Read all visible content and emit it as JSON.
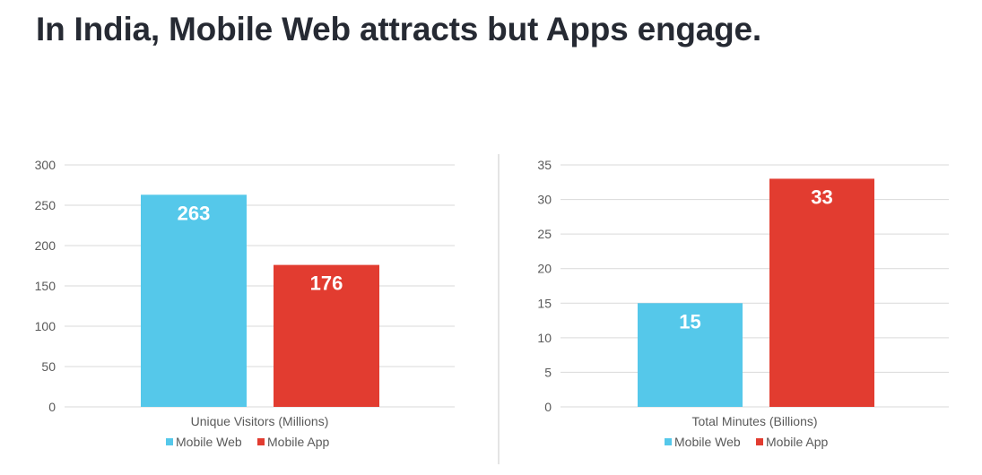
{
  "title": "In India, Mobile Web attracts but Apps engage.",
  "colors": {
    "mobile_web": "#55c8ea",
    "mobile_app": "#e23c30",
    "axis": "#595959",
    "grid": "#d9d9d9"
  },
  "chart_data": [
    {
      "type": "bar",
      "categories": [
        "Unique Visitors (Millions)"
      ],
      "series": [
        {
          "name": "Mobile Web",
          "values": [
            263
          ]
        },
        {
          "name": "Mobile App",
          "values": [
            176
          ]
        }
      ],
      "ylim": [
        0,
        300
      ],
      "yticks": [
        0,
        50,
        100,
        150,
        200,
        250,
        300
      ],
      "grid": true,
      "legend": "bottom",
      "data_labels": true
    },
    {
      "type": "bar",
      "categories": [
        "Total Minutes (Billions)"
      ],
      "series": [
        {
          "name": "Mobile Web",
          "values": [
            15
          ]
        },
        {
          "name": "Mobile App",
          "values": [
            33
          ]
        }
      ],
      "ylim": [
        0,
        35
      ],
      "yticks": [
        0,
        5,
        10,
        15,
        20,
        25,
        30,
        35
      ],
      "grid": true,
      "legend": "bottom",
      "data_labels": true
    }
  ]
}
